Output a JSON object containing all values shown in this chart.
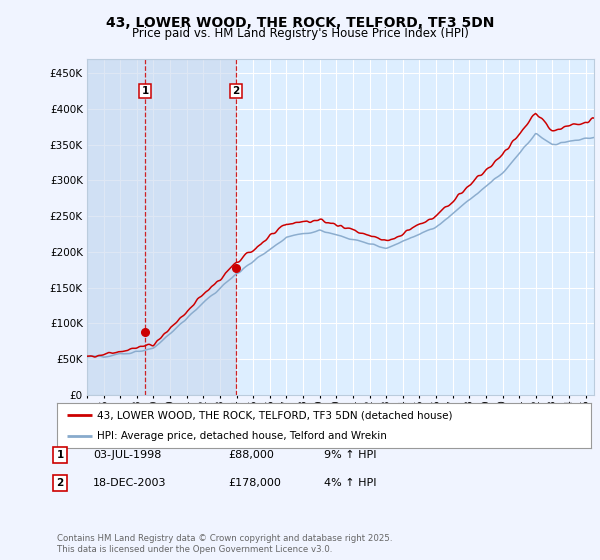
{
  "title": "43, LOWER WOOD, THE ROCK, TELFORD, TF3 5DN",
  "subtitle": "Price paid vs. HM Land Registry's House Price Index (HPI)",
  "ylim": [
    0,
    470000
  ],
  "yticks": [
    0,
    50000,
    100000,
    150000,
    200000,
    250000,
    300000,
    350000,
    400000,
    450000
  ],
  "ytick_labels": [
    "£0",
    "£50K",
    "£100K",
    "£150K",
    "£200K",
    "£250K",
    "£300K",
    "£350K",
    "£400K",
    "£450K"
  ],
  "fig_bg_color": "#f0f4ff",
  "plot_bg_color": "#ddeeff",
  "grid_color": "#e0e8f0",
  "red_line_color": "#cc0000",
  "blue_line_color": "#88aacc",
  "sale1_date_x": 1998.5,
  "sale1_price": 88000,
  "sale1_label": "1",
  "sale2_date_x": 2003.97,
  "sale2_price": 178000,
  "sale2_label": "2",
  "vline_color": "#cc0000",
  "marker_color": "#cc0000",
  "legend_label_red": "43, LOWER WOOD, THE ROCK, TELFORD, TF3 5DN (detached house)",
  "legend_label_blue": "HPI: Average price, detached house, Telford and Wrekin",
  "table_row1": [
    "1",
    "03-JUL-1998",
    "£88,000",
    "9% ↑ HPI"
  ],
  "table_row2": [
    "2",
    "18-DEC-2003",
    "£178,000",
    "4% ↑ HPI"
  ],
  "footer": "Contains HM Land Registry data © Crown copyright and database right 2025.\nThis data is licensed under the Open Government Licence v3.0.",
  "xmin": 1995,
  "xmax": 2025.5,
  "span_color": "#c8d8ee",
  "span_alpha": 0.6
}
